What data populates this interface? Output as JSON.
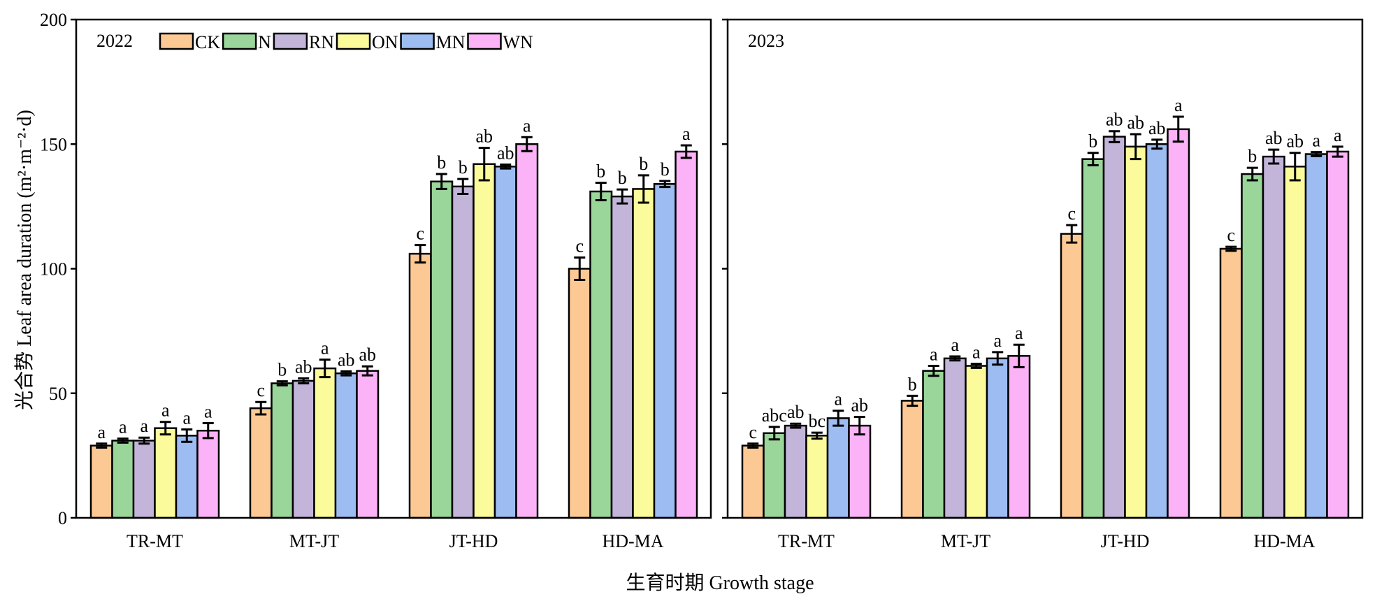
{
  "chart_data": {
    "type": "bar",
    "ylabel": "光合势 Leaf area duration (m²·m⁻²·d)",
    "xlabel": "生育时期 Growth stage",
    "ylim": [
      0,
      200
    ],
    "yticks": [
      0,
      50,
      100,
      150,
      200
    ],
    "categories": [
      "TR-MT",
      "MT-JT",
      "JT-HD",
      "HD-MA"
    ],
    "legend_placement": "top-left (first panel, horizontal)",
    "grid": false,
    "series": [
      {
        "name": "CK",
        "color": "#FCC994"
      },
      {
        "name": "N",
        "color": "#9AD59A"
      },
      {
        "name": "RN",
        "color": "#C3B5DA"
      },
      {
        "name": "ON",
        "color": "#FBFB9C"
      },
      {
        "name": "MN",
        "color": "#9DBDF2"
      },
      {
        "name": "WN",
        "color": "#FCB2F7"
      }
    ],
    "panels": [
      {
        "year": "2022",
        "values": [
          [
            29,
            31,
            31,
            36,
            33,
            35
          ],
          [
            44,
            54,
            55,
            60,
            58,
            59
          ],
          [
            106,
            135,
            133,
            142,
            141,
            150
          ],
          [
            100,
            131,
            129,
            132,
            134,
            147
          ]
        ],
        "errors": [
          [
            0.8,
            0.8,
            1.2,
            2.5,
            2.5,
            3.0
          ],
          [
            2.5,
            0.8,
            1.0,
            3.5,
            0.8,
            1.8
          ],
          [
            3.5,
            3.0,
            3.0,
            6.5,
            0.8,
            2.8
          ],
          [
            4.5,
            3.5,
            2.8,
            5.5,
            1.2,
            2.5
          ]
        ],
        "labels": [
          [
            "a",
            "a",
            "a",
            "a",
            "a",
            "a"
          ],
          [
            "c",
            "b",
            "ab",
            "a",
            "ab",
            "ab"
          ],
          [
            "c",
            "b",
            "b",
            "ab",
            "ab",
            "a"
          ],
          [
            "c",
            "b",
            "b",
            "b",
            "b",
            "a"
          ]
        ]
      },
      {
        "year": "2023",
        "values": [
          [
            29,
            34,
            37,
            33,
            40,
            37
          ],
          [
            47,
            59,
            64,
            61,
            64,
            65
          ],
          [
            114,
            144,
            153,
            149,
            150,
            156
          ],
          [
            108,
            138,
            145,
            141,
            146,
            147
          ]
        ],
        "errors": [
          [
            0.8,
            2.5,
            0.8,
            1.2,
            3.0,
            3.5
          ],
          [
            2.0,
            2.0,
            0.8,
            0.8,
            2.5,
            4.5
          ],
          [
            3.5,
            2.5,
            2.2,
            5.0,
            1.8,
            5.0
          ],
          [
            0.8,
            2.5,
            2.8,
            5.5,
            0.8,
            2.0
          ]
        ],
        "labels": [
          [
            "c",
            "abc",
            "ab",
            "bc",
            "a",
            "ab"
          ],
          [
            "b",
            "a",
            "a",
            "a",
            "a",
            "a"
          ],
          [
            "c",
            "b",
            "ab",
            "ab",
            "ab",
            "a"
          ],
          [
            "c",
            "b",
            "ab",
            "ab",
            "a",
            "a"
          ]
        ]
      }
    ]
  }
}
